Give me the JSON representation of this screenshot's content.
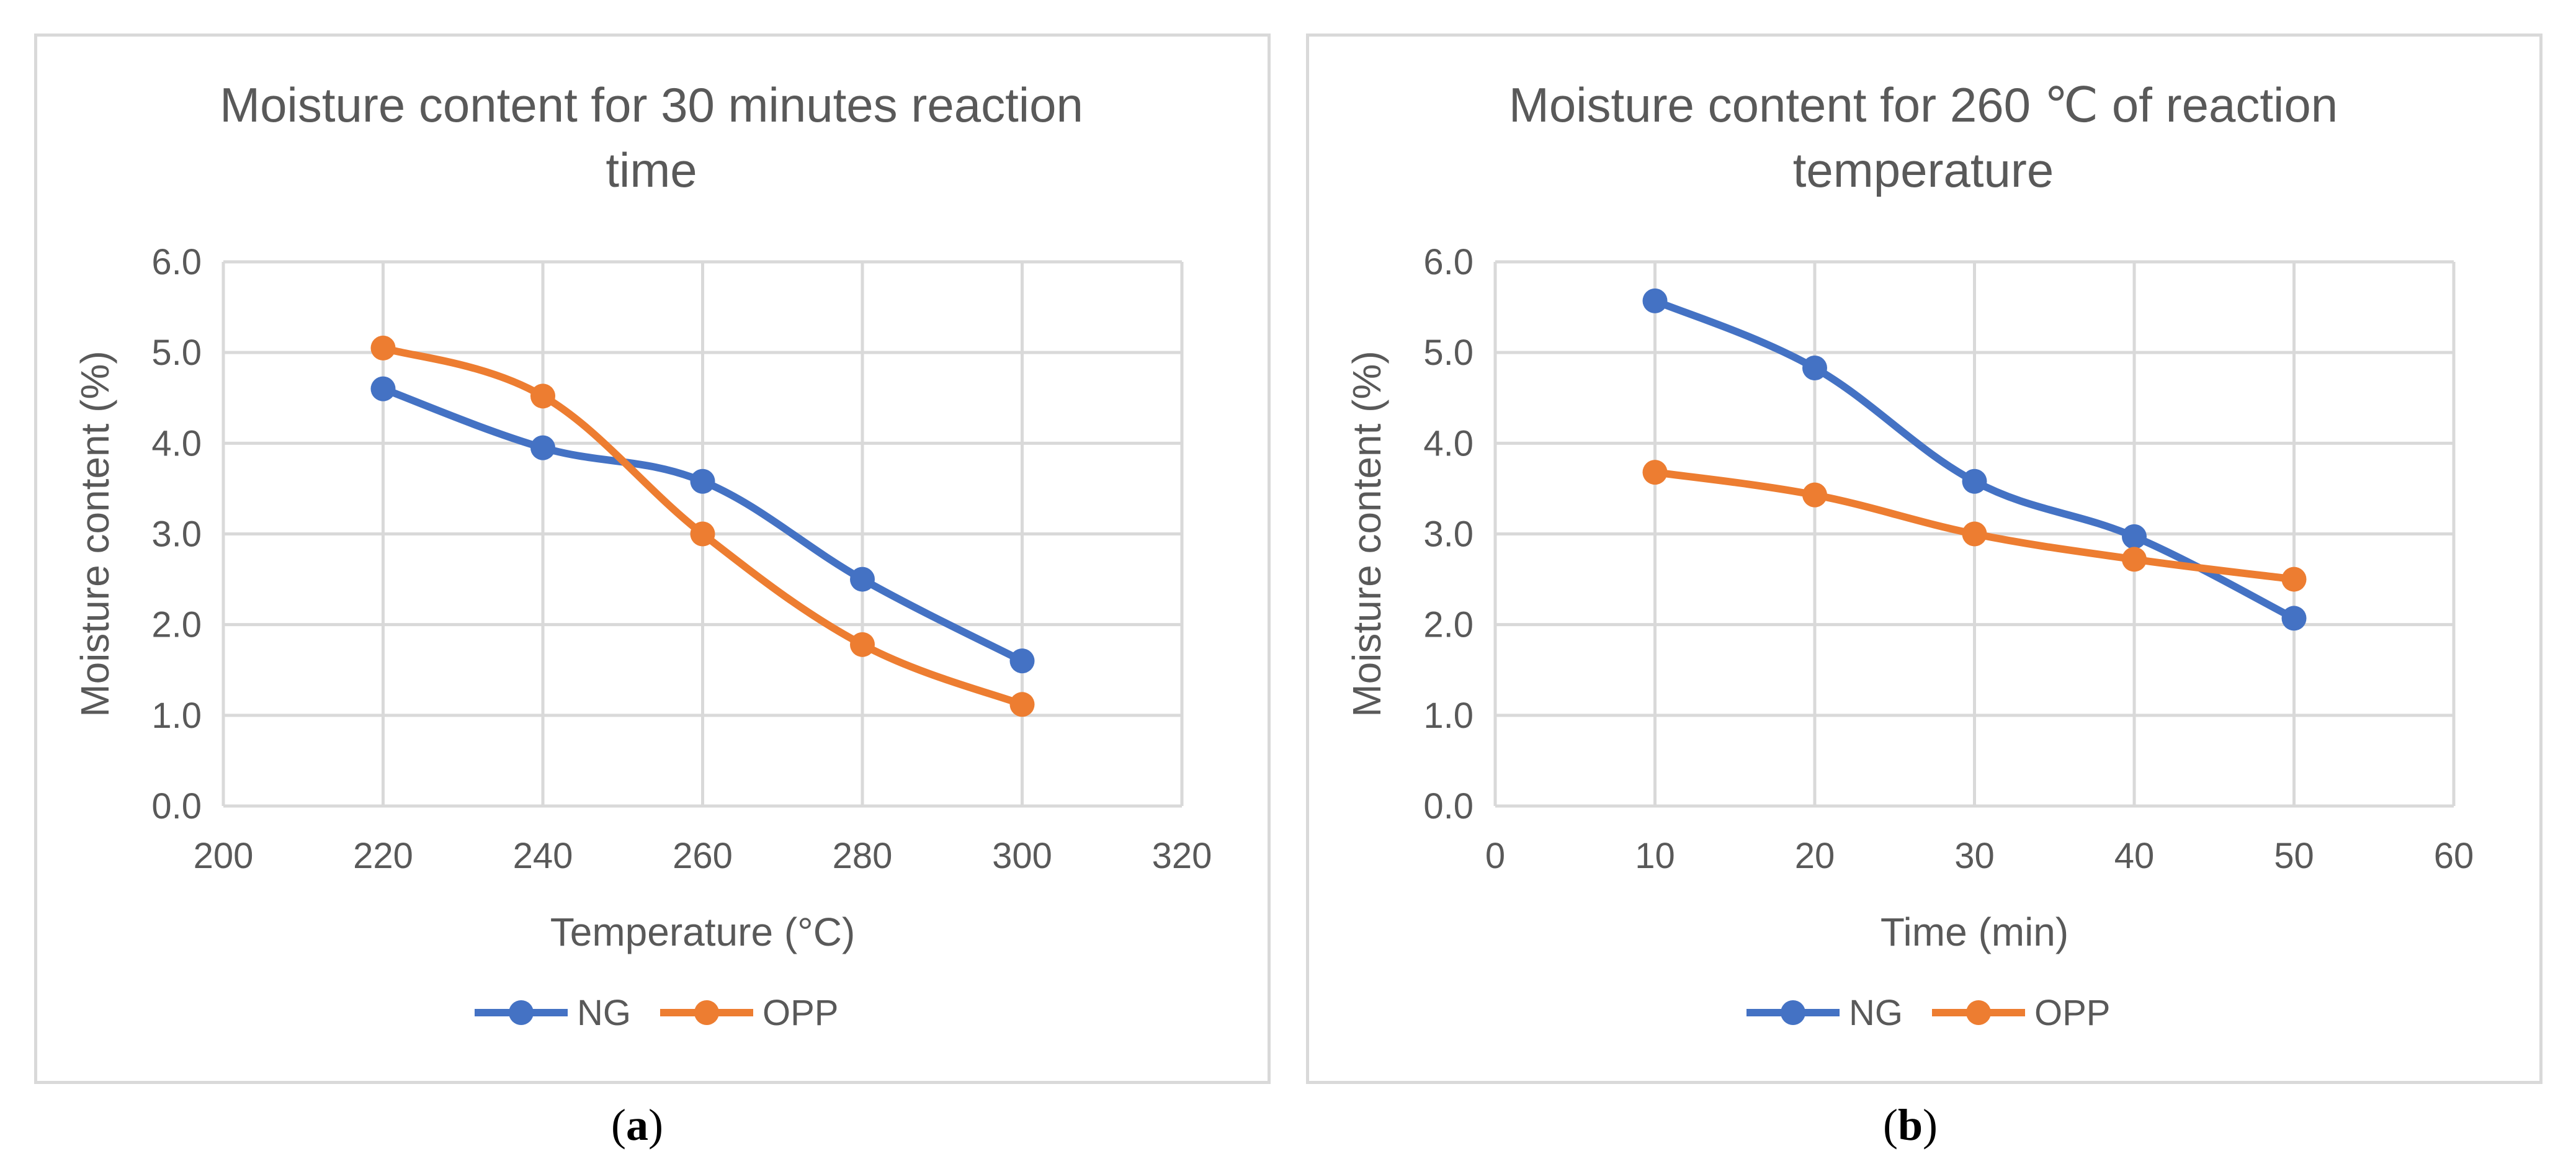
{
  "chart_data": [
    {
      "type": "line",
      "title": "Moisture content for 30 minutes reaction time",
      "title_lines": [
        "Moisture content for 30 minutes reaction",
        "time"
      ],
      "xlabel": "Temperature (°C)",
      "ylabel": "Moisture content (%)",
      "xlim": [
        200,
        320
      ],
      "ylim": [
        0,
        6
      ],
      "xticks": [
        200,
        220,
        240,
        260,
        280,
        300,
        320
      ],
      "yticks": [
        0,
        1,
        2,
        3,
        4,
        5,
        6
      ],
      "ytick_labels": [
        "0.0",
        "1.0",
        "2.0",
        "3.0",
        "4.0",
        "5.0",
        "6.0"
      ],
      "grid": true,
      "legend_position": "bottom",
      "smooth": true,
      "series": [
        {
          "name": "NG",
          "color": "#4472c4",
          "points": [
            [
              220,
              4.6
            ],
            [
              240,
              3.95
            ],
            [
              260,
              3.58
            ],
            [
              280,
              2.5
            ],
            [
              300,
              1.6
            ]
          ]
        },
        {
          "name": "OPP",
          "color": "#ed7d31",
          "points": [
            [
              220,
              5.05
            ],
            [
              240,
              4.52
            ],
            [
              260,
              3.0
            ],
            [
              280,
              1.78
            ],
            [
              300,
              1.12
            ]
          ]
        }
      ],
      "caption_letter": "a"
    },
    {
      "type": "line",
      "title": "Moisture content for 260 ℃ of reaction temperature",
      "title_lines": [
        "Moisture content for 260 ℃ of reaction",
        "temperature"
      ],
      "xlabel": "Time (min)",
      "ylabel": "Moisture content (%)",
      "xlim": [
        0,
        60
      ],
      "ylim": [
        0,
        6
      ],
      "xticks": [
        0,
        10,
        20,
        30,
        40,
        50,
        60
      ],
      "yticks": [
        0,
        1,
        2,
        3,
        4,
        5,
        6
      ],
      "ytick_labels": [
        "0.0",
        "1.0",
        "2.0",
        "3.0",
        "4.0",
        "5.0",
        "6.0"
      ],
      "grid": true,
      "legend_position": "bottom",
      "smooth": true,
      "series": [
        {
          "name": "NG",
          "color": "#4472c4",
          "points": [
            [
              10,
              5.57
            ],
            [
              20,
              4.83
            ],
            [
              30,
              3.58
            ],
            [
              40,
              2.97
            ],
            [
              50,
              2.07
            ]
          ]
        },
        {
          "name": "OPP",
          "color": "#ed7d31",
          "points": [
            [
              10,
              3.68
            ],
            [
              20,
              3.43
            ],
            [
              30,
              3.0
            ],
            [
              40,
              2.72
            ],
            [
              50,
              2.5
            ]
          ]
        }
      ],
      "caption_letter": "b"
    }
  ]
}
